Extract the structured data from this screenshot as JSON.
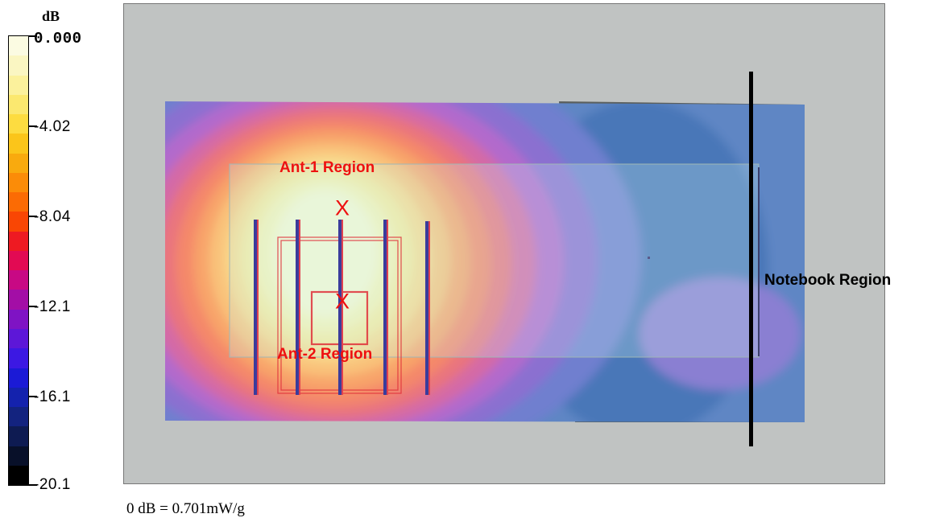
{
  "scale": {
    "unit": "dB",
    "labels": [
      "0.000",
      "-4.02",
      "-8.04",
      "-12.1",
      "-16.1",
      "-20.1"
    ],
    "colors": [
      "#fbfbe2",
      "#faf6c2",
      "#fbf19c",
      "#fbe86f",
      "#fddc40",
      "#fbc51a",
      "#f9aa0e",
      "#fb8c08",
      "#fb6b04",
      "#f94604",
      "#ee1a22",
      "#e20a53",
      "#c80984",
      "#a30ea6",
      "#7f13c4",
      "#5d17d8",
      "#3c18e3",
      "#1b1ad6",
      "#1422ad",
      "#13237f",
      "#0e1b52",
      "#081029",
      "#000000"
    ]
  },
  "regions": {
    "ant1": "Ant-1 Region",
    "ant2": "Ant-2 Region",
    "notebook": "Notebook Region"
  },
  "markers": {
    "ant1": "X",
    "ant2": "X"
  },
  "caption": "0 dB = 0.701mW/g"
}
